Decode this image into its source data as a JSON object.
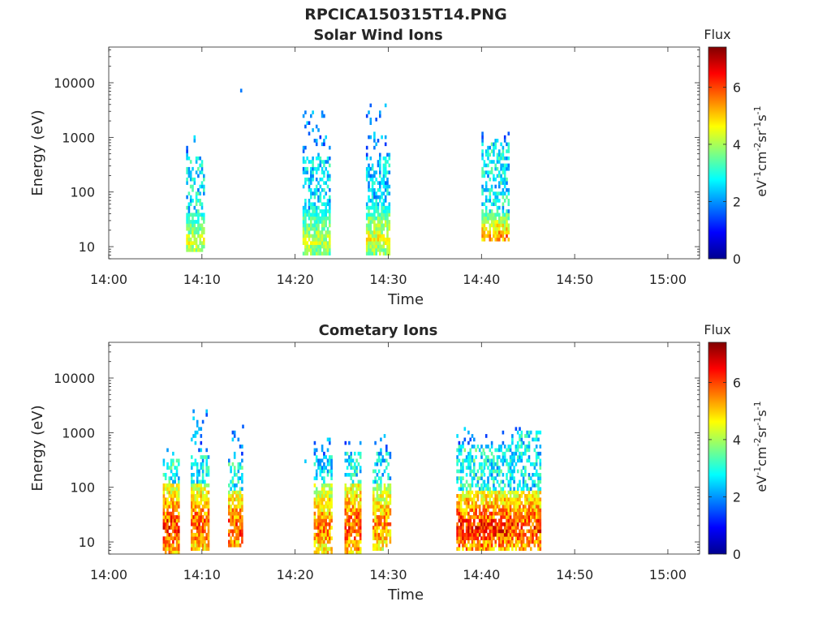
{
  "figure": {
    "title": "RPCICA150315T14.PNG"
  },
  "chart_data": [
    {
      "type": "heatmap",
      "title": "Solar Wind Ions",
      "xlabel": "Time",
      "ylabel": "Energy (eV)",
      "x_ticks": [
        "14:00",
        "14:10",
        "14:20",
        "14:30",
        "14:40",
        "14:50",
        "15:00"
      ],
      "x_tick_minutes": [
        0,
        10,
        20,
        30,
        40,
        50,
        60
      ],
      "xlim_minutes": [
        0,
        63.4
      ],
      "y_ticks": [
        "10",
        "100",
        "1000",
        "10000"
      ],
      "y_tick_values": [
        10,
        100,
        1000,
        10000
      ],
      "ylim": [
        6,
        45000
      ],
      "y_scale": "log",
      "colorbar": {
        "title": "Flux",
        "label": "eV-1cm-2sr-1s-1",
        "ticks": [
          "0",
          "2",
          "4",
          "6"
        ],
        "range": [
          0,
          7.4
        ],
        "colormap": "jet"
      },
      "bursts": [
        {
          "start_min": 8.3,
          "end_min": 10.2,
          "low": {
            "emin": 8,
            "emax": 40,
            "peak": 4.8
          },
          "high": {
            "emin": 180,
            "emax": 550,
            "peak": 3.0
          },
          "sparse_max_eV": 1100
        },
        {
          "start_min": 20.8,
          "end_min": 23.6,
          "low": {
            "emin": 7,
            "emax": 50,
            "peak": 4.6
          },
          "high": {
            "emin": 250,
            "emax": 420,
            "peak": 2.8
          },
          "sparse_max_eV": 3300
        },
        {
          "start_min": 27.6,
          "end_min": 30.0,
          "low": {
            "emin": 7,
            "emax": 55,
            "peak": 4.9
          },
          "high": {
            "emin": 250,
            "emax": 460,
            "peak": 2.7
          },
          "sparse_max_eV": 4300
        },
        {
          "start_min": 40.0,
          "end_min": 43.0,
          "low": {
            "emin": 12,
            "emax": 40,
            "peak": 6.0
          },
          "high": {
            "emin": 250,
            "emax": 800,
            "peak": 3.0
          },
          "sparse_max_eV": 1200
        }
      ],
      "isolated_points": [
        {
          "t_min": 14.1,
          "energy_eV": 7200,
          "flux": 1.8
        }
      ]
    },
    {
      "type": "heatmap",
      "title": "Cometary Ions",
      "xlabel": "Time",
      "ylabel": "Energy (eV)",
      "x_ticks": [
        "14:00",
        "14:10",
        "14:20",
        "14:30",
        "14:40",
        "14:50",
        "15:00"
      ],
      "x_tick_minutes": [
        0,
        10,
        20,
        30,
        40,
        50,
        60
      ],
      "xlim_minutes": [
        0,
        63.4
      ],
      "y_ticks": [
        "10",
        "100",
        "1000",
        "10000"
      ],
      "y_tick_values": [
        10,
        100,
        1000,
        10000
      ],
      "ylim": [
        6,
        45000
      ],
      "y_scale": "log",
      "colorbar": {
        "title": "Flux",
        "label": "eV-1cm-2sr-1s-1",
        "ticks": [
          "0",
          "2",
          "4",
          "6"
        ],
        "range": [
          0,
          7.4
        ],
        "colormap": "jet"
      },
      "bursts": [
        {
          "start_min": 5.8,
          "end_min": 7.6,
          "low": {
            "emin": 6,
            "emax": 120,
            "peak": 6.8
          },
          "high": {
            "emin": 120,
            "emax": 350,
            "peak": 3.2
          },
          "sparse_max_eV": 800
        },
        {
          "start_min": 8.8,
          "end_min": 10.6,
          "low": {
            "emin": 7,
            "emax": 120,
            "peak": 6.5
          },
          "high": {
            "emin": 120,
            "emax": 400,
            "peak": 3.0
          },
          "sparse_max_eV": 3200
        },
        {
          "start_min": 12.8,
          "end_min": 14.2,
          "low": {
            "emin": 8,
            "emax": 90,
            "peak": 6.7
          },
          "high": {
            "emin": 90,
            "emax": 300,
            "peak": 3.2
          },
          "sparse_max_eV": 1300
        },
        {
          "start_min": 22.0,
          "end_min": 23.8,
          "low": {
            "emin": 6,
            "emax": 110,
            "peak": 6.2
          },
          "high": {
            "emin": 110,
            "emax": 400,
            "peak": 2.8
          },
          "sparse_max_eV": 1000
        },
        {
          "start_min": 25.3,
          "end_min": 27.0,
          "low": {
            "emin": 6,
            "emax": 120,
            "peak": 6.6
          },
          "high": {
            "emin": 120,
            "emax": 450,
            "peak": 3.0
          },
          "sparse_max_eV": 1000
        },
        {
          "start_min": 28.3,
          "end_min": 30.2,
          "low": {
            "emin": 7,
            "emax": 110,
            "peak": 6.1
          },
          "high": {
            "emin": 110,
            "emax": 450,
            "peak": 2.9
          },
          "sparse_max_eV": 1000
        },
        {
          "start_min": 37.3,
          "end_min": 40.2,
          "low": {
            "emin": 7,
            "emax": 90,
            "peak": 7.0
          },
          "high": {
            "emin": 90,
            "emax": 600,
            "peak": 3.2
          },
          "sparse_max_eV": 1200
        },
        {
          "start_min": 40.2,
          "end_min": 43.2,
          "low": {
            "emin": 7,
            "emax": 90,
            "peak": 6.9
          },
          "high": {
            "emin": 90,
            "emax": 600,
            "peak": 3.0
          },
          "sparse_max_eV": 1100
        },
        {
          "start_min": 43.2,
          "end_min": 46.4,
          "low": {
            "emin": 7,
            "emax": 90,
            "peak": 6.8
          },
          "high": {
            "emin": 90,
            "emax": 1100,
            "peak": 3.0
          },
          "sparse_max_eV": 1200
        }
      ],
      "isolated_points": [
        {
          "t_min": 21.0,
          "energy_eV": 300,
          "flux": 2.4
        },
        {
          "t_min": 14.3,
          "energy_eV": 1300,
          "flux": 1.6
        }
      ]
    }
  ]
}
